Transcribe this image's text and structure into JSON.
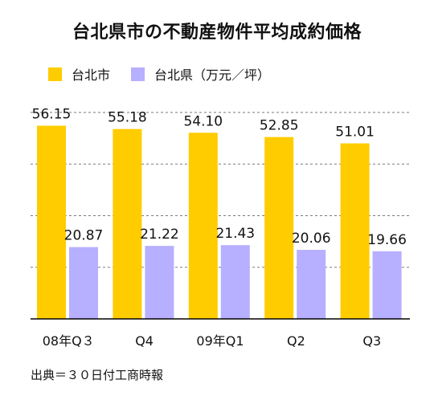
{
  "chart_data": {
    "type": "bar",
    "title": "台北県市の不動産物件平均成約価格",
    "categories": [
      "08年Q３",
      "Q4",
      "09年Q1",
      "Q2",
      "Q3"
    ],
    "series": [
      {
        "name": "台北市",
        "values": [
          56.15,
          55.18,
          54.1,
          52.85,
          51.01
        ],
        "labels": [
          "56.15",
          "55.18",
          "54.10",
          "52.85",
          "51.01"
        ],
        "color": "#FFCC00"
      },
      {
        "name": "台北県（万元／坪）",
        "values": [
          20.87,
          21.22,
          21.43,
          20.06,
          19.66
        ],
        "labels": [
          "20.87",
          "21.22",
          "21.43",
          "20.06",
          "19.66"
        ],
        "color": "#B7AFFF"
      }
    ],
    "ylim": [
      0,
      60
    ],
    "grid": true,
    "gridlines": [
      0,
      15,
      30,
      45,
      60
    ],
    "legend_position": "top-left"
  },
  "source": "出典＝３０日付工商時報"
}
